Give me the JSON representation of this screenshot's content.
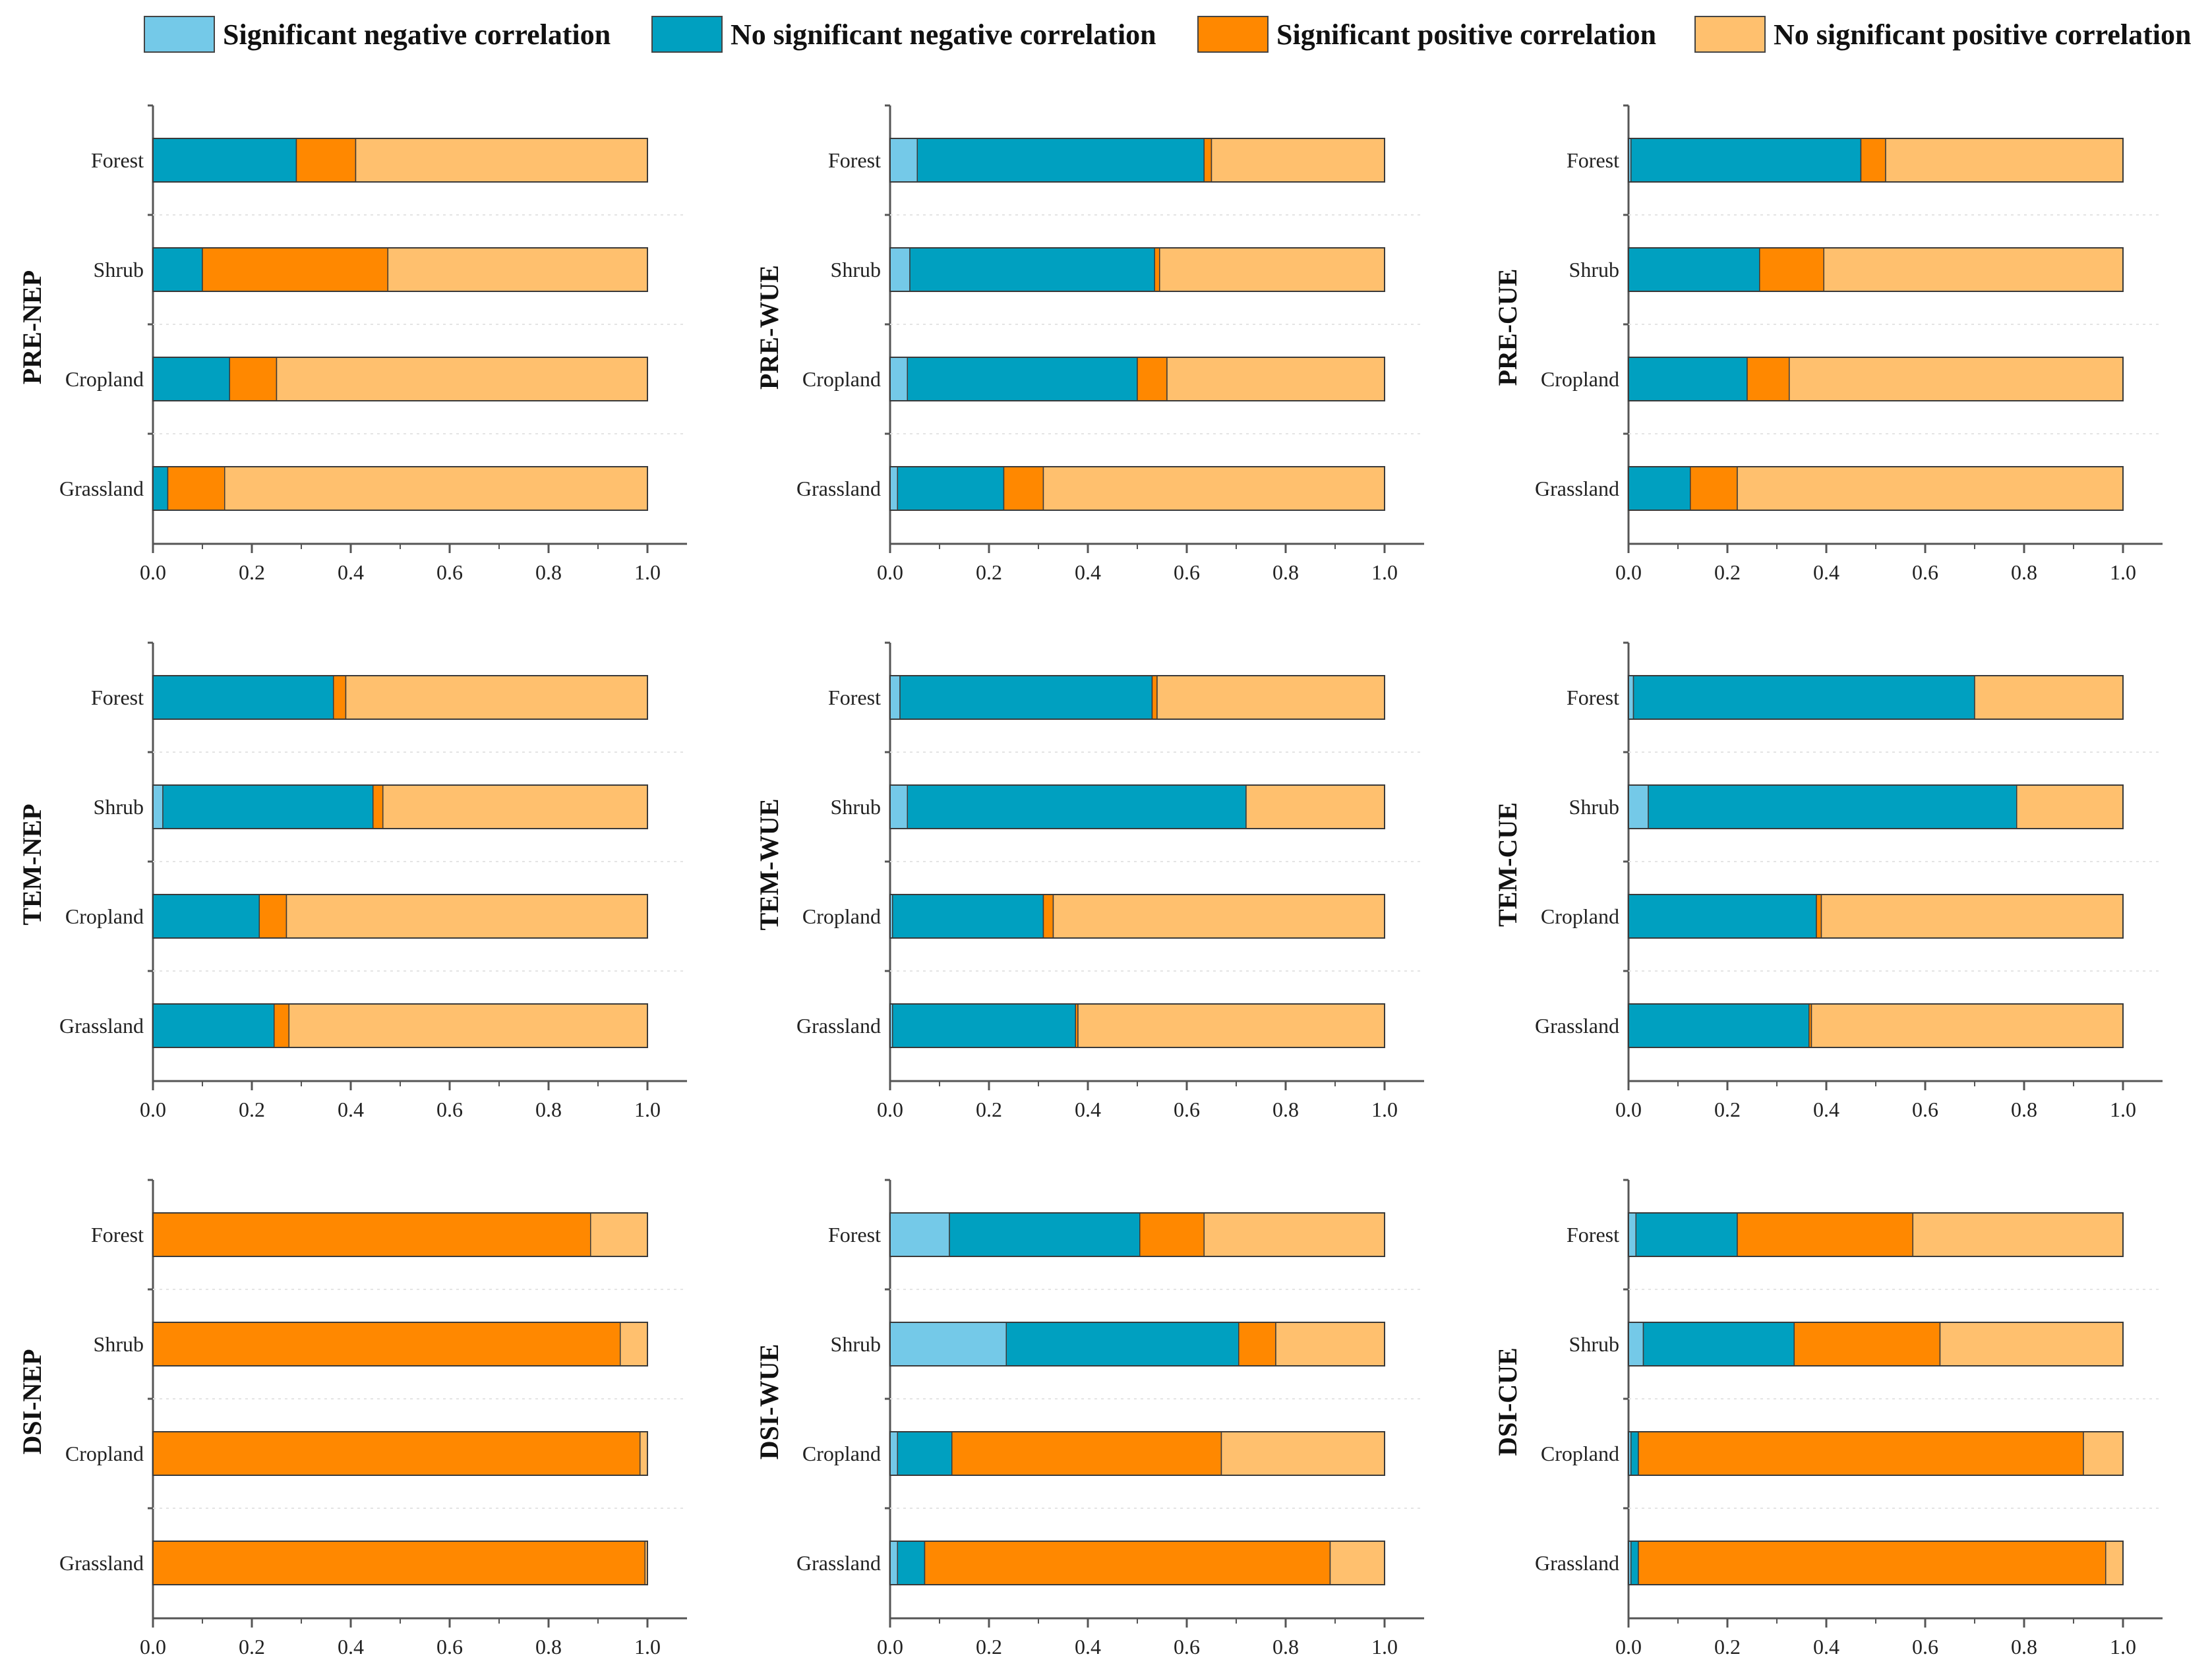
{
  "legend": {
    "items": [
      {
        "label": "Significant negative correlation",
        "color": "#74C9E8"
      },
      {
        "label": "No significant negative correlation",
        "color": "#00A0C0"
      },
      {
        "label": "Significant positive correlation",
        "color": "#FF8800"
      },
      {
        "label": "No significant positive correlation",
        "color": "#FFC06E"
      }
    ]
  },
  "colors": {
    "sig_neg": "#74C9E8",
    "nosig_neg": "#00A0C0",
    "sig_pos": "#FF8800",
    "nosig_pos": "#FFC06E",
    "axis": "#555555"
  },
  "chart_data": [
    {
      "type": "bar",
      "stacked": true,
      "orientation": "horizontal",
      "title": "PRE-NEP",
      "categories": [
        "Forest",
        "Shrub",
        "Cropland",
        "Grassland"
      ],
      "xlim": [
        0,
        1.0
      ],
      "xticks": [
        "0.0",
        "0.2",
        "0.4",
        "0.6",
        "0.8",
        "1.0"
      ],
      "series": [
        {
          "name": "Significant negative correlation",
          "values": [
            0.0,
            0.0,
            0.0,
            0.0
          ]
        },
        {
          "name": "No significant negative correlation",
          "values": [
            0.29,
            0.1,
            0.155,
            0.03
          ]
        },
        {
          "name": "Significant positive correlation",
          "values": [
            0.12,
            0.375,
            0.095,
            0.115
          ]
        },
        {
          "name": "No significant positive correlation",
          "values": [
            0.59,
            0.525,
            0.75,
            0.855
          ]
        }
      ]
    },
    {
      "type": "bar",
      "stacked": true,
      "orientation": "horizontal",
      "title": "PRE-WUE",
      "categories": [
        "Forest",
        "Shrub",
        "Cropland",
        "Grassland"
      ],
      "xlim": [
        0,
        1.0
      ],
      "xticks": [
        "0.0",
        "0.2",
        "0.4",
        "0.6",
        "0.8",
        "1.0"
      ],
      "series": [
        {
          "name": "Significant negative correlation",
          "values": [
            0.055,
            0.04,
            0.035,
            0.015
          ]
        },
        {
          "name": "No significant negative correlation",
          "values": [
            0.58,
            0.495,
            0.465,
            0.215
          ]
        },
        {
          "name": "Significant positive correlation",
          "values": [
            0.015,
            0.01,
            0.06,
            0.08
          ]
        },
        {
          "name": "No significant positive correlation",
          "values": [
            0.35,
            0.455,
            0.44,
            0.69
          ]
        }
      ]
    },
    {
      "type": "bar",
      "stacked": true,
      "orientation": "horizontal",
      "title": "PRE-CUE",
      "categories": [
        "Forest",
        "Shrub",
        "Cropland",
        "Grassland"
      ],
      "xlim": [
        0,
        1.0
      ],
      "xticks": [
        "0.0",
        "0.2",
        "0.4",
        "0.6",
        "0.8",
        "1.0"
      ],
      "series": [
        {
          "name": "Significant negative correlation",
          "values": [
            0.005,
            0.0,
            0.0,
            0.0
          ]
        },
        {
          "name": "No significant negative correlation",
          "values": [
            0.465,
            0.265,
            0.24,
            0.125
          ]
        },
        {
          "name": "Significant positive correlation",
          "values": [
            0.05,
            0.13,
            0.085,
            0.095
          ]
        },
        {
          "name": "No significant positive correlation",
          "values": [
            0.48,
            0.605,
            0.675,
            0.78
          ]
        }
      ]
    },
    {
      "type": "bar",
      "stacked": true,
      "orientation": "horizontal",
      "title": "TEM-NEP",
      "categories": [
        "Forest",
        "Shrub",
        "Cropland",
        "Grassland"
      ],
      "xlim": [
        0,
        1.0
      ],
      "xticks": [
        "0.0",
        "0.2",
        "0.4",
        "0.6",
        "0.8",
        "1.0"
      ],
      "series": [
        {
          "name": "Significant negative correlation",
          "values": [
            0.0,
            0.02,
            0.0,
            0.0
          ]
        },
        {
          "name": "No significant negative correlation",
          "values": [
            0.365,
            0.425,
            0.215,
            0.245
          ]
        },
        {
          "name": "Significant positive correlation",
          "values": [
            0.025,
            0.02,
            0.055,
            0.03
          ]
        },
        {
          "name": "No significant positive correlation",
          "values": [
            0.61,
            0.535,
            0.73,
            0.725
          ]
        }
      ]
    },
    {
      "type": "bar",
      "stacked": true,
      "orientation": "horizontal",
      "title": "TEM-WUE",
      "categories": [
        "Forest",
        "Shrub",
        "Cropland",
        "Grassland"
      ],
      "xlim": [
        0,
        1.0
      ],
      "xticks": [
        "0.0",
        "0.2",
        "0.4",
        "0.6",
        "0.8",
        "1.0"
      ],
      "series": [
        {
          "name": "Significant negative correlation",
          "values": [
            0.02,
            0.035,
            0.005,
            0.005
          ]
        },
        {
          "name": "No significant negative correlation",
          "values": [
            0.51,
            0.685,
            0.305,
            0.37
          ]
        },
        {
          "name": "Significant positive correlation",
          "values": [
            0.01,
            0.0,
            0.02,
            0.005
          ]
        },
        {
          "name": "No significant positive correlation",
          "values": [
            0.46,
            0.28,
            0.67,
            0.62
          ]
        }
      ]
    },
    {
      "type": "bar",
      "stacked": true,
      "orientation": "horizontal",
      "title": "TEM-CUE",
      "categories": [
        "Forest",
        "Shrub",
        "Cropland",
        "Grassland"
      ],
      "xlim": [
        0,
        1.0
      ],
      "xticks": [
        "0.0",
        "0.2",
        "0.4",
        "0.6",
        "0.8",
        "1.0"
      ],
      "series": [
        {
          "name": "Significant negative correlation",
          "values": [
            0.01,
            0.04,
            0.0,
            0.0
          ]
        },
        {
          "name": "No significant negative correlation",
          "values": [
            0.69,
            0.745,
            0.38,
            0.365
          ]
        },
        {
          "name": "Significant positive correlation",
          "values": [
            0.0,
            0.0,
            0.01,
            0.005
          ]
        },
        {
          "name": "No significant positive correlation",
          "values": [
            0.3,
            0.215,
            0.61,
            0.63
          ]
        }
      ]
    },
    {
      "type": "bar",
      "stacked": true,
      "orientation": "horizontal",
      "title": "DSI-NEP",
      "categories": [
        "Forest",
        "Shrub",
        "Cropland",
        "Grassland"
      ],
      "xlim": [
        0,
        1.0
      ],
      "xticks": [
        "0.0",
        "0.2",
        "0.4",
        "0.6",
        "0.8",
        "1.0"
      ],
      "series": [
        {
          "name": "Significant negative correlation",
          "values": [
            0.0,
            0.0,
            0.0,
            0.0
          ]
        },
        {
          "name": "No significant negative correlation",
          "values": [
            0.0,
            0.0,
            0.0,
            0.0
          ]
        },
        {
          "name": "Significant positive correlation",
          "values": [
            0.885,
            0.945,
            0.985,
            0.995
          ]
        },
        {
          "name": "No significant positive correlation",
          "values": [
            0.115,
            0.055,
            0.015,
            0.005
          ]
        }
      ]
    },
    {
      "type": "bar",
      "stacked": true,
      "orientation": "horizontal",
      "title": "DSI-WUE",
      "categories": [
        "Forest",
        "Shrub",
        "Cropland",
        "Grassland"
      ],
      "xlim": [
        0,
        1.0
      ],
      "xticks": [
        "0.0",
        "0.2",
        "0.4",
        "0.6",
        "0.8",
        "1.0"
      ],
      "series": [
        {
          "name": "Significant negative correlation",
          "values": [
            0.12,
            0.235,
            0.015,
            0.015
          ]
        },
        {
          "name": "No significant negative correlation",
          "values": [
            0.385,
            0.47,
            0.11,
            0.055
          ]
        },
        {
          "name": "Significant positive correlation",
          "values": [
            0.13,
            0.075,
            0.545,
            0.82
          ]
        },
        {
          "name": "No significant positive correlation",
          "values": [
            0.365,
            0.22,
            0.33,
            0.11
          ]
        }
      ]
    },
    {
      "type": "bar",
      "stacked": true,
      "orientation": "horizontal",
      "title": "DSI-CUE",
      "categories": [
        "Forest",
        "Shrub",
        "Cropland",
        "Grassland"
      ],
      "xlim": [
        0,
        1.0
      ],
      "xticks": [
        "0.0",
        "0.2",
        "0.4",
        "0.6",
        "0.8",
        "1.0"
      ],
      "series": [
        {
          "name": "Significant negative correlation",
          "values": [
            0.015,
            0.03,
            0.005,
            0.005
          ]
        },
        {
          "name": "No significant negative correlation",
          "values": [
            0.205,
            0.305,
            0.015,
            0.015
          ]
        },
        {
          "name": "Significant positive correlation",
          "values": [
            0.355,
            0.295,
            0.9,
            0.945
          ]
        },
        {
          "name": "No significant positive correlation",
          "values": [
            0.425,
            0.37,
            0.08,
            0.035
          ]
        }
      ]
    }
  ]
}
